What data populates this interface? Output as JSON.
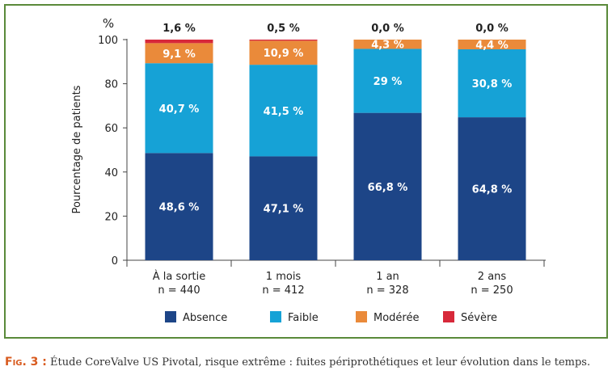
{
  "chart_data": {
    "type": "bar",
    "stacked": true,
    "title": "",
    "xlabel": "",
    "ylabel": "Pourcentage de patients",
    "y_unit": "%",
    "ylim": [
      0,
      100
    ],
    "yticks": [
      0,
      20,
      40,
      60,
      80,
      100
    ],
    "categories": [
      {
        "label": "À la sortie",
        "n": "n = 440"
      },
      {
        "label": "1 mois",
        "n": "n = 412"
      },
      {
        "label": "1 an",
        "n": "n = 328"
      },
      {
        "label": "2 ans",
        "n": "n = 250"
      }
    ],
    "series": [
      {
        "name": "Absence",
        "color": "#1d4587",
        "values": [
          48.6,
          47.1,
          66.8,
          64.8
        ],
        "labels": [
          "48,6 %",
          "47,1 %",
          "66,8 %",
          "64,8 %"
        ]
      },
      {
        "name": "Faible",
        "color": "#16a2d6",
        "values": [
          40.7,
          41.5,
          29,
          30.8
        ],
        "labels": [
          "40,7 %",
          "41,5 %",
          "29 %",
          "30,8 %"
        ]
      },
      {
        "name": "Modérée",
        "color": "#ea8a3a",
        "values": [
          9.1,
          10.9,
          4.3,
          4.4
        ],
        "labels": [
          "9,1 %",
          "10,9 %",
          "4,3 %",
          "4,4 %"
        ]
      },
      {
        "name": "Sévère",
        "color": "#d7293a",
        "values": [
          1.6,
          0.5,
          0.0,
          0.0
        ],
        "labels": [
          "1,6 %",
          "0,5 %",
          "0,0 %",
          "0,0 %"
        ]
      }
    ],
    "legend_position": "bottom",
    "grid": false
  },
  "caption": {
    "label": "Fig. 3 :",
    "text": "Étude CoreValve US Pivotal, risque extrême : fuites périprothétiques et leur évolution dans le temps."
  }
}
